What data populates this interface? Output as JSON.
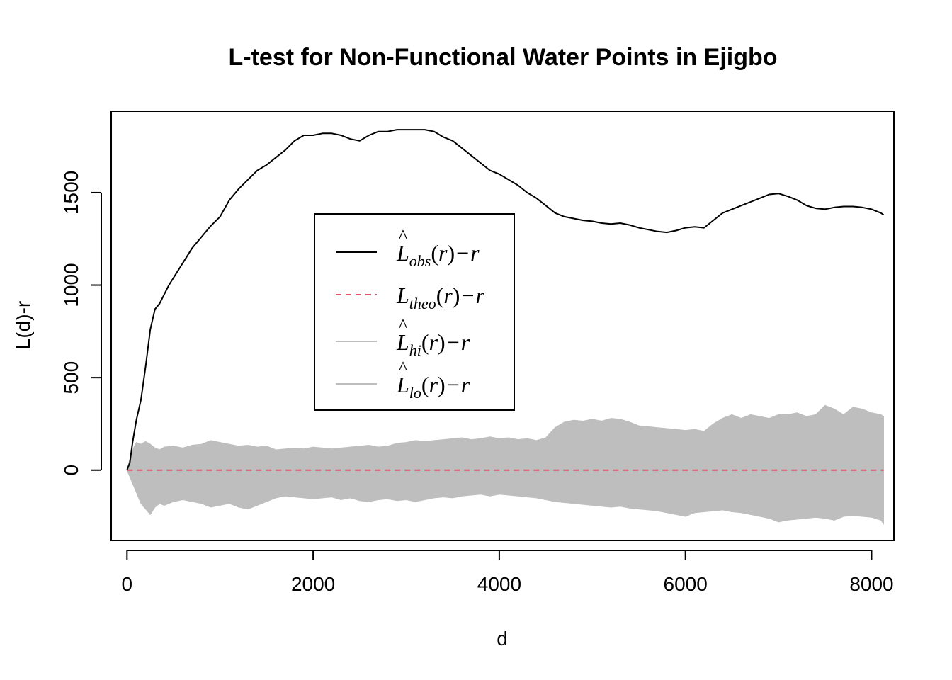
{
  "chart_data": {
    "type": "line",
    "title": "L-test for Non-Functional Water Points in Ejigbo",
    "xlabel": "d",
    "ylabel": "L(d)-r",
    "xlim": [
      -170,
      8240
    ],
    "ylim": [
      -380,
      1940
    ],
    "x_ticks": [
      0,
      2000,
      4000,
      6000,
      8000
    ],
    "y_ticks": [
      0,
      500,
      1000,
      1500
    ],
    "grid": false,
    "legend_position": "center-left",
    "colors": {
      "obs": "#000000",
      "theo": "#DF536B",
      "envelope": "#BEBEBE",
      "legend_gray": "#BEBEBE"
    },
    "legend": [
      {
        "main": "L",
        "sub": "obs",
        "args": "(r)",
        "op": "−",
        "tail": "r",
        "hat": true,
        "style": "solid",
        "color": "#000000"
      },
      {
        "main": "L",
        "sub": "theo",
        "args": "(r)",
        "op": "−",
        "tail": "r",
        "hat": false,
        "style": "dashed",
        "color": "#DF536B"
      },
      {
        "main": "L",
        "sub": "hi",
        "args": "(r)",
        "op": "−",
        "tail": "r",
        "hat": true,
        "style": "solid",
        "color": "#BEBEBE"
      },
      {
        "main": "L",
        "sub": "lo",
        "args": "(r)",
        "op": "−",
        "tail": "r",
        "hat": true,
        "style": "solid",
        "color": "#BEBEBE"
      }
    ],
    "series": [
      {
        "x": [
          0,
          30,
          60,
          100,
          150,
          200,
          250,
          300,
          350,
          400,
          450,
          500,
          600,
          700,
          800,
          900,
          1000,
          1100,
          1200,
          1300,
          1400,
          1500,
          1600,
          1700,
          1800,
          1900,
          2000,
          2100,
          2200,
          2300,
          2400,
          2500,
          2600,
          2700,
          2800,
          2900,
          3000,
          3100,
          3200,
          3300,
          3400,
          3500,
          3600,
          3700,
          3800,
          3900,
          4000,
          4100,
          4200,
          4300,
          4400,
          4500,
          4600,
          4700,
          4800,
          4900,
          5000,
          5100,
          5200,
          5300,
          5400,
          5500,
          5600,
          5700,
          5800,
          5900,
          6000,
          6100,
          6200,
          6300,
          6400,
          6500,
          6600,
          6700,
          6800,
          6900,
          7000,
          7100,
          7200,
          7300,
          7400,
          7500,
          7600,
          7700,
          7800,
          7900,
          8000,
          8100,
          8130
        ],
        "values": [
          0,
          40,
          150,
          270,
          380,
          560,
          760,
          870,
          900,
          950,
          1000,
          1040,
          1120,
          1200,
          1260,
          1320,
          1370,
          1460,
          1520,
          1570,
          1620,
          1650,
          1690,
          1730,
          1780,
          1810,
          1810,
          1820,
          1820,
          1810,
          1790,
          1780,
          1810,
          1830,
          1830,
          1840,
          1840,
          1840,
          1840,
          1830,
          1800,
          1780,
          1740,
          1700,
          1660,
          1620,
          1600,
          1570,
          1540,
          1500,
          1470,
          1430,
          1390,
          1370,
          1360,
          1350,
          1345,
          1335,
          1330,
          1335,
          1325,
          1310,
          1300,
          1290,
          1285,
          1295,
          1310,
          1315,
          1310,
          1350,
          1390,
          1410,
          1430,
          1450,
          1470,
          1490,
          1495,
          1480,
          1460,
          1430,
          1415,
          1410,
          1420,
          1425,
          1425,
          1420,
          1410,
          1390,
          1380
        ]
      },
      {
        "x": [
          0,
          8130
        ],
        "values": [
          0,
          0
        ]
      },
      {
        "x": [
          0,
          50,
          100,
          150,
          200,
          250,
          300,
          350,
          400,
          500,
          600,
          700,
          800,
          900,
          1000,
          1100,
          1200,
          1300,
          1400,
          1500,
          1600,
          1700,
          1800,
          1900,
          2000,
          2100,
          2200,
          2300,
          2400,
          2500,
          2600,
          2700,
          2800,
          2900,
          3000,
          3100,
          3200,
          3300,
          3400,
          3500,
          3600,
          3700,
          3800,
          3900,
          4000,
          4100,
          4200,
          4300,
          4400,
          4500,
          4600,
          4700,
          4800,
          4900,
          5000,
          5100,
          5200,
          5300,
          5400,
          5500,
          5600,
          5700,
          5800,
          5900,
          6000,
          6100,
          6200,
          6300,
          6400,
          6500,
          6600,
          6700,
          6800,
          6900,
          7000,
          7100,
          7200,
          7300,
          7400,
          7500,
          7600,
          7700,
          7800,
          7900,
          8000,
          8100,
          8130
        ],
        "values": [
          0,
          100,
          150,
          140,
          155,
          140,
          120,
          110,
          125,
          130,
          120,
          135,
          140,
          160,
          150,
          140,
          130,
          135,
          125,
          130,
          110,
          115,
          120,
          115,
          125,
          120,
          115,
          120,
          125,
          130,
          135,
          125,
          130,
          145,
          150,
          160,
          155,
          160,
          165,
          170,
          175,
          165,
          170,
          180,
          170,
          175,
          165,
          170,
          160,
          175,
          230,
          260,
          270,
          265,
          275,
          265,
          280,
          275,
          260,
          240,
          235,
          230,
          225,
          220,
          215,
          220,
          210,
          250,
          280,
          300,
          280,
          300,
          290,
          280,
          300,
          300,
          310,
          290,
          300,
          350,
          330,
          300,
          340,
          330,
          310,
          300,
          290
        ]
      },
      {
        "x": [
          0,
          50,
          100,
          150,
          200,
          250,
          300,
          350,
          400,
          500,
          600,
          700,
          800,
          900,
          1000,
          1100,
          1200,
          1300,
          1400,
          1500,
          1600,
          1700,
          1800,
          1900,
          2000,
          2100,
          2200,
          2300,
          2400,
          2500,
          2600,
          2700,
          2800,
          2900,
          3000,
          3100,
          3200,
          3300,
          3400,
          3500,
          3600,
          3700,
          3800,
          3900,
          4000,
          4100,
          4200,
          4300,
          4400,
          4500,
          4600,
          4700,
          4800,
          4900,
          5000,
          5100,
          5200,
          5300,
          5400,
          5500,
          5600,
          5700,
          5800,
          5900,
          6000,
          6100,
          6200,
          6300,
          6400,
          6500,
          6600,
          6700,
          6800,
          6900,
          7000,
          7100,
          7200,
          7300,
          7400,
          7500,
          7600,
          7700,
          7800,
          7900,
          8000,
          8100,
          8130
        ],
        "values": [
          0,
          -60,
          -120,
          -180,
          -210,
          -240,
          -200,
          -180,
          -190,
          -170,
          -160,
          -170,
          -180,
          -200,
          -190,
          -180,
          -200,
          -210,
          -190,
          -170,
          -150,
          -140,
          -145,
          -150,
          -155,
          -150,
          -145,
          -160,
          -150,
          -165,
          -170,
          -160,
          -155,
          -165,
          -160,
          -170,
          -160,
          -150,
          -145,
          -150,
          -140,
          -135,
          -130,
          -140,
          -130,
          -135,
          -140,
          -145,
          -150,
          -160,
          -170,
          -175,
          -180,
          -185,
          -190,
          -195,
          -200,
          -195,
          -205,
          -210,
          -215,
          -220,
          -230,
          -240,
          -250,
          -230,
          -225,
          -220,
          -215,
          -225,
          -230,
          -240,
          -250,
          -260,
          -280,
          -270,
          -265,
          -260,
          -255,
          -260,
          -270,
          -250,
          -245,
          -250,
          -255,
          -270,
          -290
        ]
      }
    ]
  }
}
